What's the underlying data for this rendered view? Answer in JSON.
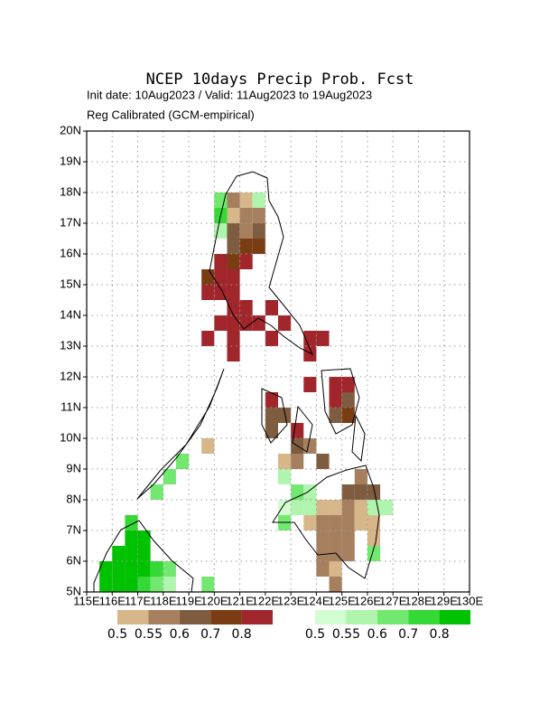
{
  "chart_data": {
    "type": "gridmap",
    "title": "NCEP 10days Precip Prob. Fcst",
    "subtitle": "Init date: 10Aug2023 / Valid: 11Aug2023 to 19Aug2023",
    "subtitle2": "Reg Calibrated (GCM-empirical)",
    "xlim": [
      115,
      130
    ],
    "ylim": [
      5,
      20
    ],
    "cell_size": 0.5,
    "grid": true,
    "xticks": [
      {
        "value": 115,
        "label": "115E"
      },
      {
        "value": 116,
        "label": "116E"
      },
      {
        "value": 117,
        "label": "117E"
      },
      {
        "value": 118,
        "label": "118E"
      },
      {
        "value": 119,
        "label": "119E"
      },
      {
        "value": 120,
        "label": "120E"
      },
      {
        "value": 121,
        "label": "121E"
      },
      {
        "value": 122,
        "label": "122E"
      },
      {
        "value": 123,
        "label": "123E"
      },
      {
        "value": 124,
        "label": "124E"
      },
      {
        "value": 125,
        "label": "125E"
      },
      {
        "value": 126,
        "label": "126E"
      },
      {
        "value": 127,
        "label": "127E"
      },
      {
        "value": 128,
        "label": "128E"
      },
      {
        "value": 129,
        "label": "129E"
      },
      {
        "value": 130,
        "label": "130E"
      }
    ],
    "yticks": [
      {
        "value": 5,
        "label": "5N"
      },
      {
        "value": 6,
        "label": "6N"
      },
      {
        "value": 7,
        "label": "7N"
      },
      {
        "value": 8,
        "label": "8N"
      },
      {
        "value": 9,
        "label": "9N"
      },
      {
        "value": 10,
        "label": "10N"
      },
      {
        "value": 11,
        "label": "11N"
      },
      {
        "value": 12,
        "label": "12N"
      },
      {
        "value": 13,
        "label": "13N"
      },
      {
        "value": 14,
        "label": "14N"
      },
      {
        "value": 15,
        "label": "15N"
      },
      {
        "value": 16,
        "label": "16N"
      },
      {
        "value": 17,
        "label": "17N"
      },
      {
        "value": 18,
        "label": "18N"
      },
      {
        "value": 19,
        "label": "19N"
      },
      {
        "value": 20,
        "label": "20N"
      }
    ],
    "levels": [
      0.5,
      0.55,
      0.6,
      0.7,
      0.8
    ],
    "below_colors": [
      "#d7b68a",
      "#a6805e",
      "#7e5c40",
      "#7a3c12",
      "#a1262c"
    ],
    "above_colors": [
      "#d2fdd0",
      "#b0f5ad",
      "#72e870",
      "#35d935",
      "#00c200"
    ],
    "below_cells": [
      [
        120.5,
        17.5,
        0.55
      ],
      [
        121,
        17.5,
        0.5
      ],
      [
        120.5,
        17,
        0.5
      ],
      [
        121,
        17,
        0.55
      ],
      [
        121.5,
        17,
        0.55
      ],
      [
        120,
        16.5,
        0.55
      ],
      [
        120.5,
        16.5,
        0.6
      ],
      [
        121,
        16.5,
        0.55
      ],
      [
        121.5,
        16.5,
        0.6
      ],
      [
        120.5,
        16,
        0.6
      ],
      [
        121,
        16,
        0.7
      ],
      [
        121.5,
        16,
        0.7
      ],
      [
        120,
        15.5,
        0.8
      ],
      [
        120.5,
        15.5,
        0.7
      ],
      [
        121,
        15.5,
        0.8
      ],
      [
        119.5,
        15,
        0.7
      ],
      [
        120,
        15,
        0.8
      ],
      [
        120.5,
        15,
        0.8
      ],
      [
        119.5,
        14.5,
        0.8
      ],
      [
        120,
        14.5,
        0.8
      ],
      [
        120.5,
        14.5,
        0.8
      ],
      [
        120.5,
        14,
        0.8
      ],
      [
        121,
        14,
        0.8
      ],
      [
        122,
        14,
        0.8
      ],
      [
        120,
        13.5,
        0.8
      ],
      [
        120.5,
        13.5,
        0.8
      ],
      [
        121,
        13.5,
        0.8
      ],
      [
        121.5,
        13.5,
        0.8
      ],
      [
        122.5,
        13.5,
        0.8
      ],
      [
        119.5,
        13,
        0.8
      ],
      [
        120.5,
        13,
        0.8
      ],
      [
        122,
        13,
        0.8
      ],
      [
        123.5,
        13,
        0.8
      ],
      [
        124,
        13,
        0.8
      ],
      [
        120.5,
        12.5,
        0.8
      ],
      [
        123.5,
        12.5,
        0.8
      ],
      [
        123.5,
        11.5,
        0.8
      ],
      [
        124.5,
        11.5,
        0.8
      ],
      [
        125,
        11.5,
        0.8
      ],
      [
        122,
        11,
        0.8
      ],
      [
        124.5,
        11,
        0.8
      ],
      [
        125,
        11,
        0.6
      ],
      [
        122,
        10.5,
        0.6
      ],
      [
        122.5,
        10.5,
        0.6
      ],
      [
        124.5,
        10.5,
        0.6
      ],
      [
        125,
        10.5,
        0.7
      ],
      [
        122,
        10,
        0.6
      ],
      [
        123,
        10,
        0.8
      ],
      [
        123,
        9.5,
        0.6
      ],
      [
        123.5,
        9.5,
        0.55
      ],
      [
        119.5,
        9.5,
        0.5
      ],
      [
        122.5,
        9,
        0.5
      ],
      [
        123,
        9,
        0.55
      ],
      [
        124,
        9,
        0.6
      ],
      [
        125.5,
        8.5,
        0.55
      ],
      [
        125,
        8,
        0.6
      ],
      [
        125.5,
        8,
        0.6
      ],
      [
        126,
        8,
        0.6
      ],
      [
        124,
        7.5,
        0.5
      ],
      [
        124.5,
        7.5,
        0.5
      ],
      [
        125,
        7.5,
        0.55
      ],
      [
        125.5,
        7.5,
        0.5
      ],
      [
        123.5,
        7,
        0.5
      ],
      [
        124,
        7,
        0.55
      ],
      [
        124.5,
        7,
        0.55
      ],
      [
        125,
        7,
        0.55
      ],
      [
        125.5,
        7,
        0.5
      ],
      [
        126,
        7,
        0.5
      ],
      [
        124,
        6.5,
        0.55
      ],
      [
        124.5,
        6.5,
        0.55
      ],
      [
        125,
        6.5,
        0.55
      ],
      [
        126,
        6.5,
        0.5
      ],
      [
        124,
        6,
        0.55
      ],
      [
        124.5,
        6,
        0.55
      ],
      [
        125,
        6,
        0.55
      ],
      [
        124,
        5.5,
        0.55
      ],
      [
        124.5,
        5.5,
        0.5
      ],
      [
        124.5,
        5,
        0.55
      ]
    ],
    "above_cells": [
      [
        120,
        17.5,
        0.6
      ],
      [
        121.5,
        17.5,
        0.55
      ],
      [
        120,
        17,
        0.7
      ],
      [
        120,
        16.5,
        0.55
      ],
      [
        123,
        8,
        0.6
      ],
      [
        123.5,
        8,
        0.55
      ],
      [
        122.5,
        7.5,
        0.5
      ],
      [
        123,
        7.5,
        0.55
      ],
      [
        123.5,
        7.5,
        0.55
      ],
      [
        122.5,
        7,
        0.6
      ],
      [
        122.5,
        8.5,
        0.55
      ],
      [
        126,
        7.5,
        0.55
      ],
      [
        126.5,
        7.5,
        0.55
      ],
      [
        126,
        6,
        0.6
      ],
      [
        118.5,
        9,
        0.6
      ],
      [
        118,
        8.5,
        0.6
      ],
      [
        117.5,
        8,
        0.6
      ],
      [
        116.5,
        7,
        0.7
      ],
      [
        116.5,
        6.5,
        0.8
      ],
      [
        117,
        6.5,
        0.8
      ],
      [
        116,
        6,
        0.8
      ],
      [
        116.5,
        6,
        0.8
      ],
      [
        117,
        6,
        0.8
      ],
      [
        115.5,
        5.5,
        0.8
      ],
      [
        116,
        5.5,
        0.8
      ],
      [
        116.5,
        5.5,
        0.8
      ],
      [
        117,
        5.5,
        0.8
      ],
      [
        117.5,
        5.5,
        0.7
      ],
      [
        118,
        5.5,
        0.6
      ],
      [
        115.5,
        5,
        0.8
      ],
      [
        116,
        5,
        0.8
      ],
      [
        116.5,
        5,
        0.8
      ],
      [
        117,
        5,
        0.7
      ],
      [
        117.5,
        5,
        0.6
      ],
      [
        118,
        5,
        0.55
      ],
      [
        119.5,
        5,
        0.6
      ]
    ]
  }
}
